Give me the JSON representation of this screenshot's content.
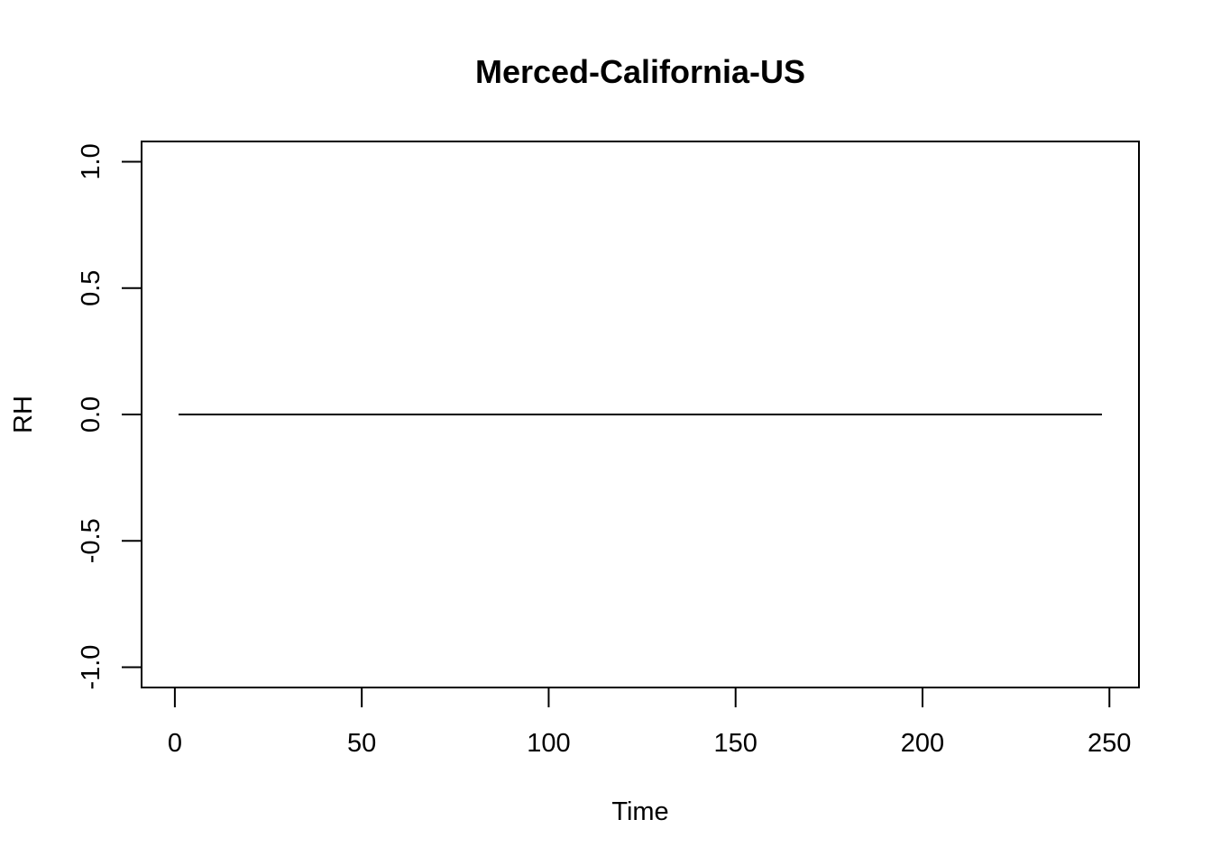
{
  "chart_data": {
    "type": "line",
    "title": "Merced-California-US",
    "xlabel": "Time",
    "ylabel": "RH",
    "xlim": [
      -8.9,
      257.9
    ],
    "ylim": [
      -1.08,
      1.08
    ],
    "x_ticks": [
      0,
      50,
      100,
      150,
      200,
      250
    ],
    "y_ticks": [
      -1.0,
      -0.5,
      0.0,
      0.5,
      1.0
    ],
    "x_tick_labels": [
      "0",
      "50",
      "100",
      "150",
      "200",
      "250"
    ],
    "y_tick_labels": [
      "-1.0",
      "-0.5",
      "0.0",
      "0.5",
      "1.0"
    ],
    "grid": false,
    "series": [
      {
        "x": [
          1,
          248
        ],
        "values": [
          0,
          0
        ],
        "color": "#000000"
      }
    ]
  }
}
